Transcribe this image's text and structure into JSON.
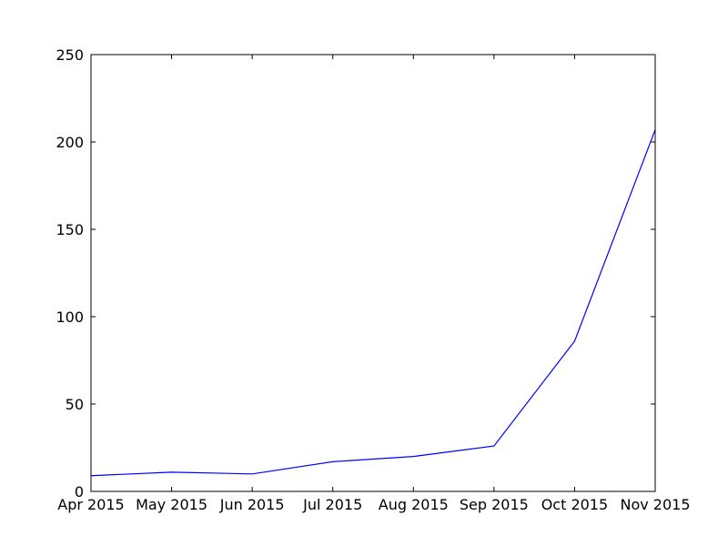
{
  "chart_data": {
    "type": "line",
    "title": "",
    "xlabel": "",
    "ylabel": "",
    "categories": [
      "Apr 2015",
      "May 2015",
      "Jun 2015",
      "Jul 2015",
      "Aug 2015",
      "Sep 2015",
      "Oct 2015",
      "Nov 2015"
    ],
    "series": [
      {
        "values": [
          9,
          11,
          10,
          17,
          20,
          26,
          86,
          207
        ]
      }
    ],
    "ylim": [
      0,
      250
    ],
    "yticks": [
      0,
      50,
      100,
      150,
      200,
      250
    ],
    "grid": false,
    "colors": {
      "line": "#0000ff",
      "axes": "#000000"
    }
  }
}
